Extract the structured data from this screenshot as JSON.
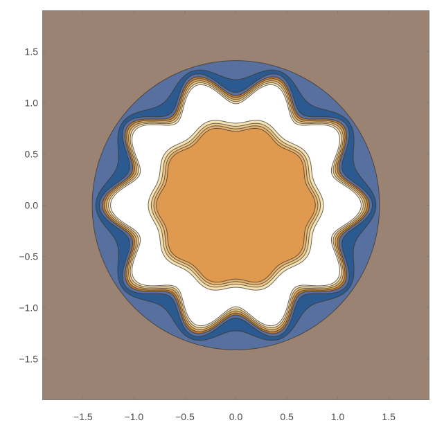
{
  "chart_data": {
    "type": "contour",
    "title": "",
    "xlabel": "",
    "ylabel": "",
    "xlim": [
      -1.9,
      1.9
    ],
    "ylim": [
      -1.9,
      1.9
    ],
    "grid": false,
    "legend": "none",
    "xticks": [
      -1.5,
      -1.0,
      -0.5,
      0.0,
      0.5,
      1.0,
      1.5
    ],
    "yticks": [
      -1.5,
      -1.0,
      -0.5,
      0.0,
      0.5,
      1.0,
      1.5
    ],
    "xtick_labels": [
      "−1.5",
      "−1.0",
      "−0.5",
      "0.0",
      "0.5",
      "1.0",
      "1.5"
    ],
    "ytick_labels": [
      "−1.5",
      "−1.0",
      "−0.5",
      "0.0",
      "0.5",
      "1.0",
      "1.5"
    ],
    "regions": [
      {
        "name": "corners",
        "color": "#9b8373",
        "boundary": {
          "r0": 1.95,
          "amp": 0,
          "lobes": 0
        }
      },
      {
        "name": "outer",
        "color": "#5870a0",
        "boundary": {
          "r0": 1.41,
          "amp": 0,
          "lobes": 0
        }
      },
      {
        "name": "ring-dark",
        "color": "#2b5a91",
        "boundary": {
          "r0": 1.3,
          "amp": 0.075,
          "lobes": 10
        }
      },
      {
        "name": "ring-mid",
        "color": "#5870a0",
        "boundary": {
          "r0": 1.22,
          "amp": 0.12,
          "lobes": 10
        }
      },
      {
        "name": "band-1",
        "color": "#b57a3c",
        "boundary": {
          "r0": 1.19,
          "amp": 0.12,
          "lobes": 10
        }
      },
      {
        "name": "band-2",
        "color": "#d9a860",
        "boundary": {
          "r0": 1.17,
          "amp": 0.12,
          "lobes": 10
        }
      },
      {
        "name": "band-3",
        "color": "#e9c98c",
        "boundary": {
          "r0": 1.15,
          "amp": 0.12,
          "lobes": 10
        }
      },
      {
        "name": "band-4",
        "color": "#f7e9c8",
        "boundary": {
          "r0": 1.13,
          "amp": 0.12,
          "lobes": 10
        }
      },
      {
        "name": "plateau",
        "color": "#ffffff",
        "boundary": {
          "r0": 1.11,
          "amp": 0.12,
          "lobes": 10
        }
      },
      {
        "name": "inner-band-1",
        "color": "#f5e4b8",
        "boundary": {
          "r0": 0.83,
          "amp": 0.03,
          "lobes": 10
        }
      },
      {
        "name": "inner-band-2",
        "color": "#ecc98a",
        "boundary": {
          "r0": 0.8,
          "amp": 0.03,
          "lobes": 10
        }
      },
      {
        "name": "inner-band-3",
        "color": "#e2b071",
        "boundary": {
          "r0": 0.775,
          "amp": 0.03,
          "lobes": 10
        }
      },
      {
        "name": "core",
        "color": "#df9a4f",
        "boundary": {
          "r0": 0.75,
          "amp": 0.03,
          "lobes": 10
        }
      }
    ]
  }
}
